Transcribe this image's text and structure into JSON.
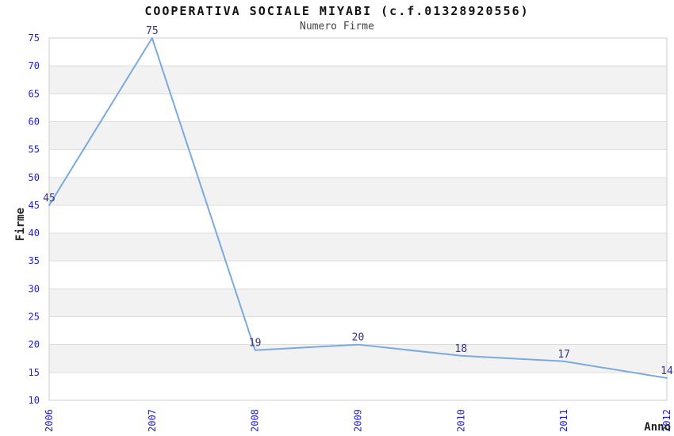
{
  "chart_data": {
    "type": "line",
    "title": "COOPERATIVA SOCIALE MIYABI (c.f.01328920556)",
    "subtitle": "Numero Firme",
    "xlabel": "Anno",
    "ylabel": "Firme",
    "x": [
      "2006",
      "2007",
      "2008",
      "2009",
      "2010",
      "2011",
      "2012"
    ],
    "series": [
      {
        "name": "Numero Firme",
        "values": [
          45,
          75,
          19,
          20,
          18,
          17,
          14
        ]
      }
    ],
    "data_labels": [
      "45",
      "75",
      "19",
      "20",
      "18",
      "17",
      "14"
    ],
    "ylim": [
      10,
      75
    ],
    "ytick_step": 5,
    "yticks": [
      10,
      15,
      20,
      25,
      30,
      35,
      40,
      45,
      50,
      55,
      60,
      65,
      70,
      75
    ],
    "grid": true,
    "band_fill": "alternating horizontal bands every 5 units",
    "legend": "none",
    "colors": {
      "line": "#7aaade",
      "tick_label": "#2222cc",
      "data_label": "#333388",
      "band": "#f2f2f2",
      "gridline": "#dddddd",
      "border": "#cccccc",
      "title": "#111111",
      "subtitle": "#444444",
      "axis_label": "#222222"
    }
  }
}
